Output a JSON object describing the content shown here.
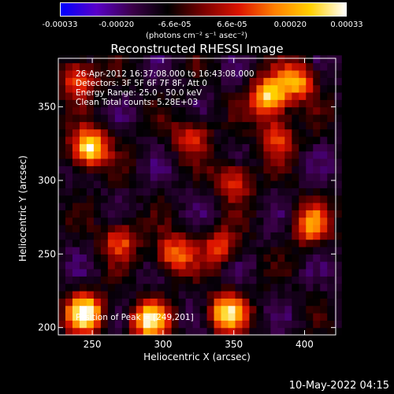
{
  "colorbar": {
    "tick_labels": [
      "-0.00033",
      "-0.00020",
      "-6.6e-05",
      "6.6e-05",
      "0.00020",
      "0.00033"
    ],
    "tick_values": [
      -0.00033,
      -0.0002,
      -6.6e-05,
      6.6e-05,
      0.0002,
      0.00033
    ],
    "range": [
      -0.00033,
      0.00033
    ],
    "unit_label": "(photons cm⁻² s⁻¹ asec⁻²)",
    "colors": [
      "#0000ff",
      "#5a00c8",
      "#3c004a",
      "#000000",
      "#7a0000",
      "#dc1400",
      "#ff8000",
      "#ffd000",
      "#ffffff"
    ]
  },
  "chart_data": {
    "type": "heatmap",
    "title": "Reconstructed RHESSI Image",
    "xlabel": "Heliocentric X (arcsec)",
    "ylabel": "Heliocentric Y (arcsec)",
    "xlim": [
      226,
      422
    ],
    "ylim": [
      195,
      383
    ],
    "x_ticks": [
      250,
      300,
      350,
      400
    ],
    "y_ticks": [
      200,
      250,
      300,
      350
    ],
    "info_lines": [
      "26-Apr-2012 16:37:08.000 to 16:43:08.000",
      "Detectors: 3F 5F 6F 7F 8F, Att 0",
      "Energy Range: 25.0 - 50.0 keV",
      "Clean    Total counts: 5.28E+03"
    ],
    "peak_annotation": "Position of Peak = [249,201]",
    "peak_position": [
      249,
      201
    ],
    "bright_sources": [
      {
        "x": 248,
        "y": 322,
        "intensity": 0.00033
      },
      {
        "x": 245,
        "y": 210,
        "intensity": 0.00033
      },
      {
        "x": 290,
        "y": 205,
        "intensity": 0.00028
      },
      {
        "x": 375,
        "y": 357,
        "intensity": 0.0003
      },
      {
        "x": 345,
        "y": 210,
        "intensity": 0.00028
      },
      {
        "x": 308,
        "y": 250,
        "intensity": 0.00018
      },
      {
        "x": 405,
        "y": 270,
        "intensity": 0.00018
      },
      {
        "x": 395,
        "y": 368,
        "intensity": 0.0002
      },
      {
        "x": 240,
        "y": 370,
        "intensity": 0.00015
      },
      {
        "x": 270,
        "y": 260,
        "intensity": 0.00012
      },
      {
        "x": 350,
        "y": 300,
        "intensity": 0.00012
      },
      {
        "x": 340,
        "y": 255,
        "intensity": 0.0001
      },
      {
        "x": 380,
        "y": 330,
        "intensity": 0.00012
      },
      {
        "x": 320,
        "y": 330,
        "intensity": 0.0001
      }
    ]
  },
  "footer": {
    "datestamp": "10-May-2022 04:15"
  }
}
